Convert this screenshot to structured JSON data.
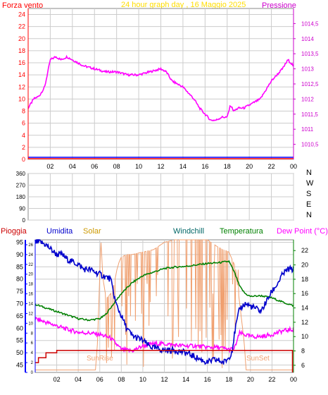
{
  "colors": {
    "pressure": "#ff00ff",
    "wind_axis": "#ff0000",
    "pressure_axis": "#cc00cc",
    "title": "#ffdd00",
    "humidity": "#0000cc",
    "solar": "#f0a070",
    "windchill": "#006666",
    "temperature": "#008000",
    "dewpoint": "#ff00ff",
    "rain": "#cc0000",
    "axis_blue": "#0000ff",
    "axis_green": "#008000",
    "grid": "#cccccc"
  },
  "header": {
    "wind_label": "Forza vento",
    "title": "24 hour graph day , 16 Maggio 2025",
    "pressure_label": "Pressione"
  },
  "middle": {
    "dir_labels": [
      "N",
      "W",
      "S",
      "E",
      "N"
    ]
  },
  "bottom_header": {
    "rain_label": "Pioggia",
    "humidity_label": "Umidita",
    "solar_label": "Solar",
    "windchill_label": "Windchill",
    "temperature_label": "Temperatura",
    "dewpoint_label": "Dew Point (°C)"
  },
  "annotations": {
    "sunrise": "SunRise",
    "sunset": "SunSet"
  },
  "x_ticks": [
    "02",
    "04",
    "06",
    "08",
    "10",
    "12",
    "14",
    "16",
    "18",
    "20",
    "22",
    "00"
  ],
  "chart_data": [
    {
      "type": "line",
      "title": "24 hour graph day , 16 Maggio 2025",
      "xlabel": "",
      "x_range": [
        0,
        24
      ],
      "y_left": {
        "label": "Forza vento",
        "range": [
          0,
          25
        ],
        "ticks": [
          0,
          2,
          4,
          6,
          8,
          10,
          12,
          14,
          16,
          18,
          20,
          22,
          24
        ]
      },
      "y_right": {
        "label": "Pressione",
        "range": [
          1010,
          1015
        ],
        "ticks": [
          1010.5,
          1011,
          1011.5,
          1012,
          1012.5,
          1013,
          1013.5,
          1014,
          1014.5
        ]
      },
      "series": [
        {
          "name": "Pressione",
          "axis": "right",
          "x": [
            0,
            0.5,
            1,
            1.5,
            2,
            2.5,
            3,
            3.5,
            4,
            5,
            6,
            7,
            8,
            9,
            10,
            11,
            12,
            12.5,
            13,
            14,
            15,
            15.5,
            16,
            16.5,
            17,
            17.5,
            18,
            18.3,
            18.6,
            19,
            19.5,
            20,
            21,
            22,
            23,
            23.5,
            24
          ],
          "y": [
            1011.7,
            1012,
            1012.1,
            1012.4,
            1013.3,
            1013.4,
            1013.3,
            1013.4,
            1013.3,
            1013.1,
            1013.0,
            1012.9,
            1012.9,
            1012.8,
            1012.8,
            1012.9,
            1013.0,
            1012.9,
            1012.6,
            1012.4,
            1012.0,
            1011.7,
            1011.5,
            1011.3,
            1011.3,
            1011.4,
            1011.4,
            1011.8,
            1011.6,
            1011.7,
            1011.7,
            1011.8,
            1012.0,
            1012.6,
            1013.0,
            1013.3,
            1013.1
          ]
        },
        {
          "name": "Forza vento",
          "axis": "left",
          "x": [
            0,
            24
          ],
          "y": [
            0,
            0
          ]
        }
      ]
    },
    {
      "type": "line",
      "title": "",
      "x_range": [
        0,
        24
      ],
      "y_left": {
        "label": "",
        "range": [
          0,
          360
        ],
        "ticks": [
          0,
          90,
          180,
          270,
          360
        ]
      },
      "series": []
    },
    {
      "type": "line",
      "title": "",
      "x_range": [
        0,
        24
      ],
      "y_left_outer": {
        "label": "Pioggia",
        "range": [
          0,
          27
        ],
        "ticks": [
          0,
          2,
          4,
          6,
          8,
          10,
          12,
          14,
          16,
          18,
          20,
          22,
          24,
          26
        ]
      },
      "y_left": {
        "label": "Umidita",
        "range": [
          42,
          96
        ],
        "ticks": [
          45,
          50,
          55,
          60,
          65,
          70,
          75,
          80,
          85,
          90,
          95
        ]
      },
      "y_right": {
        "label": "Dew Point (°C)",
        "range": [
          5,
          23.5
        ],
        "ticks": [
          6,
          8,
          10,
          12,
          14,
          16,
          18,
          20,
          22
        ]
      },
      "series": [
        {
          "name": "Umidita",
          "axis": "left",
          "x": [
            0,
            0.5,
            1,
            1.5,
            2,
            2.5,
            3,
            3.5,
            4,
            4.5,
            5,
            5.5,
            6,
            6.5,
            7,
            7.5,
            8,
            8.5,
            9,
            9.5,
            10,
            10.5,
            11,
            12,
            13,
            14,
            15,
            15.5,
            16,
            16.5,
            17,
            17.5,
            18,
            18.3,
            18.6,
            19,
            19.5,
            20,
            21,
            21.5,
            22,
            22.5,
            23,
            23.5,
            24
          ],
          "y": [
            95,
            95,
            94,
            92,
            90,
            90,
            88,
            87,
            86,
            84,
            84,
            83,
            82,
            81,
            80,
            70,
            65,
            60,
            57,
            56,
            55,
            53,
            52,
            51,
            51,
            50,
            48,
            47,
            46,
            47,
            47,
            46,
            48,
            51,
            60,
            68,
            70,
            69,
            67,
            71,
            75,
            78,
            82,
            84,
            84
          ]
        },
        {
          "name": "Solar",
          "axis": "left",
          "x": [
            0,
            5.6,
            5.8,
            6.1,
            6.3,
            6.6,
            7.2,
            7.6,
            7.8,
            8,
            8.5,
            9,
            10,
            11,
            12,
            13,
            14,
            15,
            16,
            17,
            18,
            18.3,
            18.6,
            19,
            19.4,
            19.6,
            24
          ],
          "y": [
            43,
            43,
            55,
            96,
            80,
            72,
            75,
            84,
            87,
            89,
            90,
            90,
            91,
            92,
            95,
            96,
            96,
            96,
            96,
            93,
            91,
            88,
            85,
            70,
            55,
            43,
            43
          ]
        },
        {
          "name": "Windchill",
          "axis": "right",
          "x": [
            0,
            1,
            2,
            3,
            4,
            5,
            6,
            6.5,
            7,
            7.5,
            8,
            9,
            10,
            11,
            12,
            13,
            14,
            15,
            16,
            17,
            18,
            18.5,
            19,
            19.5,
            20,
            21,
            22,
            23,
            24
          ],
          "y": [
            14.5,
            14,
            13.5,
            13,
            12.5,
            12.3,
            12.5,
            13,
            14,
            15,
            16,
            17.5,
            18.5,
            19,
            19.5,
            19.7,
            19.8,
            20,
            20.2,
            20.3,
            20.5,
            19,
            17,
            16,
            15.6,
            15.7,
            15.4,
            14.8,
            14.3
          ]
        },
        {
          "name": "Temperatura",
          "axis": "right",
          "x": [
            0,
            1,
            2,
            3,
            4,
            5,
            6,
            6.5,
            7,
            7.5,
            8,
            9,
            10,
            11,
            12,
            13,
            14,
            15,
            16,
            17,
            18,
            18.5,
            19,
            19.5,
            20,
            21,
            22,
            23,
            24
          ],
          "y": [
            14.5,
            14,
            13.5,
            13,
            12.5,
            12.3,
            12.5,
            13,
            14,
            15,
            16,
            17.5,
            18.5,
            19,
            19.5,
            19.7,
            19.8,
            20,
            20.2,
            20.3,
            20.5,
            19,
            17,
            16,
            15.6,
            15.7,
            15.4,
            14.8,
            14.3
          ]
        },
        {
          "name": "Dew Point (°C)",
          "axis": "right",
          "x": [
            0,
            1,
            2,
            3,
            4,
            5,
            6,
            7,
            7.5,
            8,
            9,
            10,
            11,
            12,
            13,
            14,
            15,
            16,
            17,
            18,
            18.5,
            19,
            20,
            21,
            22,
            23,
            24
          ],
          "y": [
            12.5,
            12,
            11.5,
            11,
            10.6,
            10.5,
            10.3,
            9.8,
            9,
            8.2,
            8,
            8.7,
            9,
            9,
            8.8,
            8.7,
            8.7,
            8.5,
            8.5,
            8.2,
            8.3,
            10.5,
            10,
            10,
            10.3,
            10.8,
            11
          ]
        },
        {
          "name": "Pioggia",
          "axis": "left_outer",
          "x": [
            0,
            0.3,
            0.3,
            1,
            1,
            2,
            2,
            23.9,
            23.9
          ],
          "y": [
            2,
            2,
            3,
            3,
            4,
            4,
            4.5,
            4.5,
            0
          ]
        }
      ]
    }
  ]
}
